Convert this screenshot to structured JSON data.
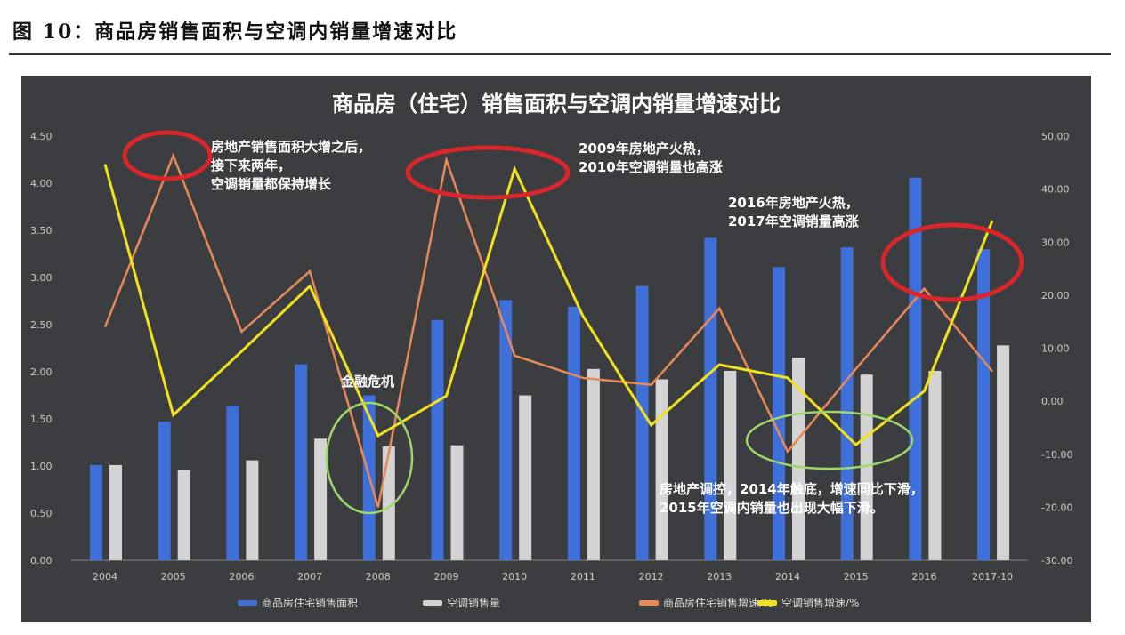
{
  "figure_title": "图 10：商品房销售面积与空调内销量增速对比",
  "chart_data": {
    "type": "bar+line",
    "title": "商品房（住宅）销售面积与空调内销量增速对比",
    "categories": [
      "2004",
      "2005",
      "2006",
      "2007",
      "2008",
      "2009",
      "2010",
      "2011",
      "2012",
      "2013",
      "2014",
      "2015",
      "2016",
      "2017-10"
    ],
    "left_axis": {
      "ylim": [
        0,
        4.5
      ],
      "ticks": [
        "0.00",
        "0.50",
        "1.00",
        "1.50",
        "2.00",
        "2.50",
        "3.00",
        "3.50",
        "4.00",
        "4.50"
      ]
    },
    "right_axis": {
      "ylim": [
        -30,
        50
      ],
      "ticks": [
        "-30.00",
        "-20.00",
        "-10.00",
        "0.00",
        "10.00",
        "20.00",
        "30.00",
        "40.00",
        "50.00"
      ]
    },
    "series": [
      {
        "name": "商品房住宅销售面积",
        "type": "bar",
        "axis": "left",
        "color": "#3f6fd8",
        "values": [
          1.01,
          1.47,
          1.64,
          2.08,
          1.75,
          2.55,
          2.76,
          2.69,
          2.91,
          3.42,
          3.11,
          3.32,
          4.06,
          3.3
        ]
      },
      {
        "name": "空调销售量",
        "type": "bar",
        "axis": "left",
        "color": "#d4d4d4",
        "values": [
          1.01,
          0.96,
          1.06,
          1.29,
          1.21,
          1.22,
          1.75,
          2.03,
          1.92,
          2.01,
          2.15,
          1.97,
          2.01,
          2.28
        ]
      },
      {
        "name": "商品房住宅销售增速/%",
        "type": "line",
        "axis": "right",
        "color": "#e8895a",
        "values": [
          14.0,
          46.3,
          13.1,
          24.5,
          -20.0,
          45.5,
          8.6,
          4.4,
          3.1,
          17.5,
          -9.5,
          6.1,
          21.2,
          5.6
        ]
      },
      {
        "name": "空调销售增速/%",
        "type": "line",
        "axis": "right",
        "color": "#f2e21c",
        "values": [
          44.7,
          -2.6,
          9.4,
          21.7,
          -6.5,
          1.0,
          43.8,
          16.1,
          -4.5,
          6.9,
          4.4,
          -8.2,
          1.9,
          34.1
        ]
      }
    ],
    "legend": "bottom",
    "grid": false,
    "annotations": [
      {
        "lines": [
          "房地产销售面积大增之后，",
          "接下来两年，",
          "空调销量都保持增长"
        ]
      },
      {
        "lines": [
          "2009年房地产火热，",
          "2010年空调销量也高涨"
        ]
      },
      {
        "lines": [
          "2016年房地产火热，",
          "2017年空调销量高涨"
        ]
      },
      {
        "lines": [
          "金融危机"
        ]
      },
      {
        "lines": [
          "房地产调控，2014年触底，增速同比下滑，",
          "2015年空调内销量也出现大幅下滑。"
        ]
      }
    ],
    "highlight_colors": {
      "red": "#d8262b",
      "green": "#9fd86a"
    }
  }
}
